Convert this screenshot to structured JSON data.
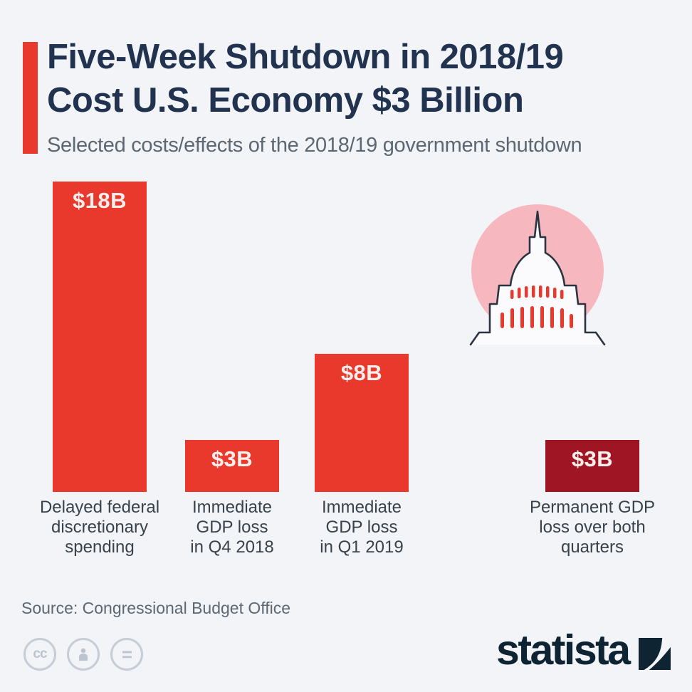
{
  "page": {
    "background_color": "#f2f4f8"
  },
  "header": {
    "title_line1": "Five-Week Shutdown in 2018/19",
    "title_line2": "Cost U.S. Economy $3 Billion",
    "subtitle": "Selected costs/effects of the 2018/19 government shutdown",
    "accent_color": "#e9382c",
    "title_color": "#22334f"
  },
  "chart_data": {
    "type": "bar",
    "title": "Selected costs/effects of the 2018/19 government shutdown",
    "unit": "billion USD",
    "categories": [
      "Delayed federal\ndiscretionary\nspending",
      "Immediate\nGDP loss\nin Q4 2018",
      "Immediate\nGDP loss\nin Q1 2019",
      "Permanent GDP\nloss over both\nquarters"
    ],
    "values": [
      18,
      3,
      8,
      3
    ],
    "value_labels": [
      "$18B",
      "$3B",
      "$8B",
      "$3B"
    ],
    "bar_colors": [
      "#e9382c",
      "#e9382c",
      "#e9382c",
      "#9f1523"
    ],
    "ylim": [
      0,
      18
    ],
    "grid": false,
    "axes_shown": false,
    "value_label_position": "inside-top",
    "value_label_color": "#fbeeec"
  },
  "decoration": {
    "icon": "us-capitol-icon",
    "circle_color": "#f6b8be",
    "outline_color": "#2a3442",
    "window_color": "#e9382c"
  },
  "footer": {
    "source": "Source: Congressional Budget Office",
    "license": {
      "cc_label": "cc",
      "equals_label": "="
    },
    "brand": "statista",
    "brand_color": "#0e2433"
  }
}
